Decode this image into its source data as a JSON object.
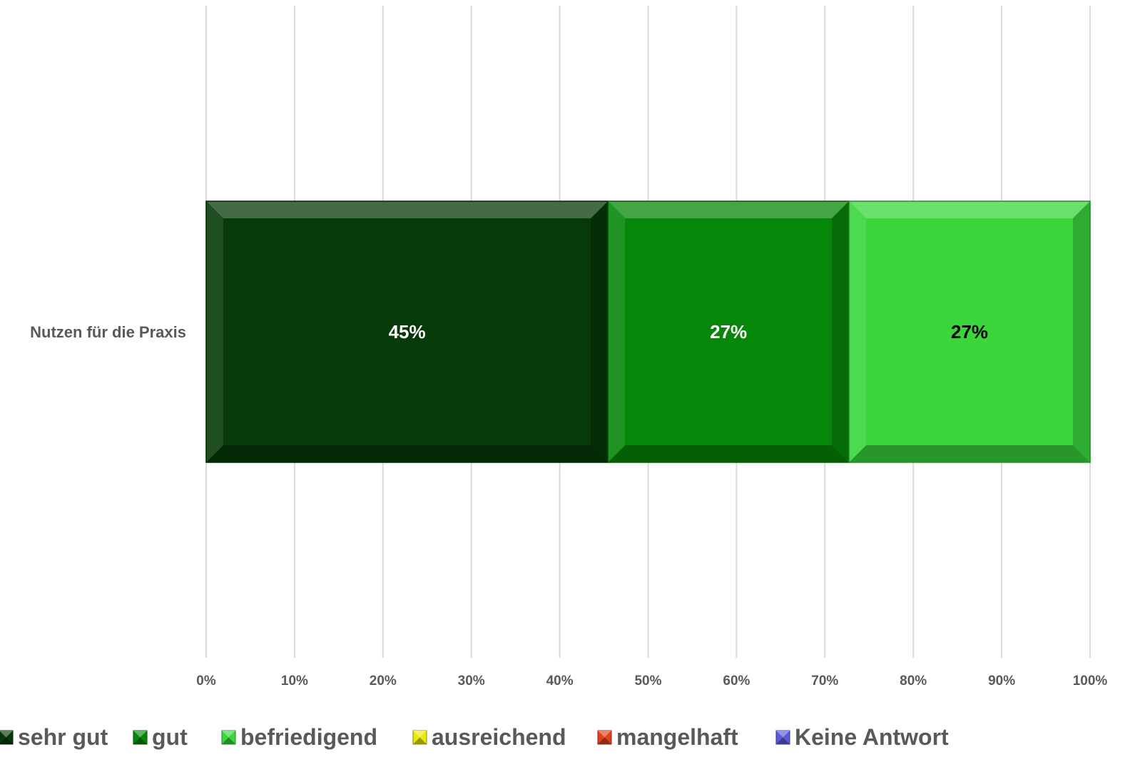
{
  "chart_data": {
    "type": "bar",
    "orientation": "horizontal",
    "stacked": "percent",
    "title": "",
    "xlabel": "",
    "ylabel": "",
    "xlim": [
      0,
      100
    ],
    "grid": true,
    "legend_position": "bottom",
    "categories": [
      "Nutzen für die Praxis"
    ],
    "x_ticks": [
      "0%",
      "10%",
      "20%",
      "30%",
      "40%",
      "50%",
      "60%",
      "70%",
      "80%",
      "90%",
      "100%"
    ],
    "series": [
      {
        "name": "sehr gut",
        "color": "#063a08",
        "label_color": "#ffffff",
        "values": [
          45
        ],
        "labels": [
          "45%"
        ]
      },
      {
        "name": "gut",
        "color": "#06870a",
        "label_color": "#ffffff",
        "values": [
          27
        ],
        "labels": [
          "27%"
        ]
      },
      {
        "name": "befriedigend",
        "color": "#3ad63c",
        "label_color": "#000000",
        "values": [
          27
        ],
        "labels": [
          "27%"
        ]
      },
      {
        "name": "ausreichend",
        "color": "#e8e80a",
        "label_color": "#000000",
        "values": [
          0
        ],
        "labels": [
          ""
        ]
      },
      {
        "name": "mangelhaft",
        "color": "#e0401a",
        "label_color": "#000000",
        "values": [
          0
        ],
        "labels": [
          ""
        ]
      },
      {
        "name": "Keine Antwort",
        "color": "#5a5ad8",
        "label_color": "#000000",
        "values": [
          0
        ],
        "labels": [
          ""
        ]
      }
    ]
  }
}
